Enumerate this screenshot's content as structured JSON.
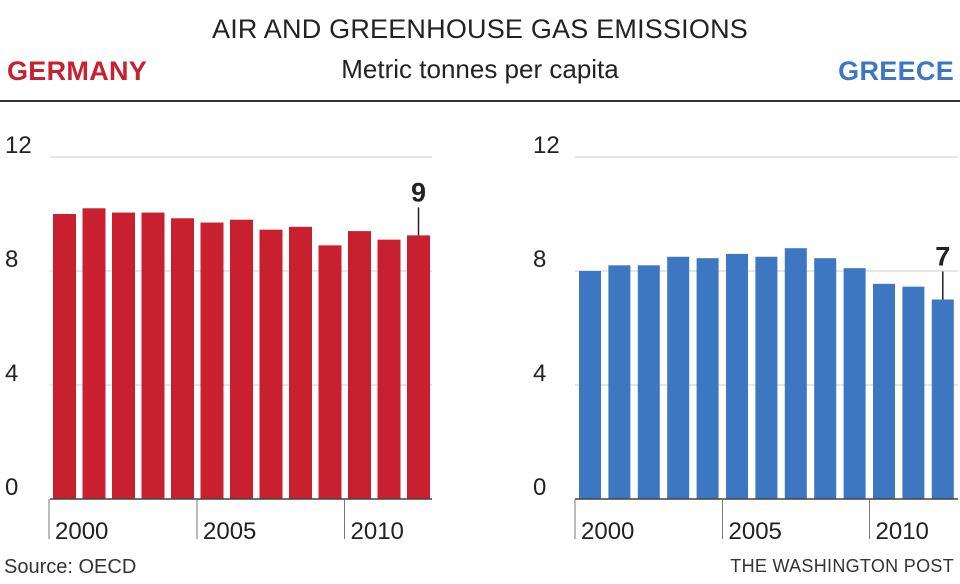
{
  "header": {
    "title": "AIR AND GREENHOUSE GAS EMISSIONS",
    "subtitle": "Metric tonnes per capita",
    "left_country": "GERMANY",
    "right_country": "GREECE"
  },
  "footer": {
    "source": "Source: OECD",
    "credit": "THE WASHINGTON POST"
  },
  "chart_data": [
    {
      "type": "bar",
      "country": "GERMANY",
      "color": "#c8202f",
      "x": [
        1999,
        2000,
        2001,
        2002,
        2003,
        2004,
        2005,
        2006,
        2007,
        2008,
        2009,
        2010,
        2011
      ],
      "values": [
        10.0,
        10.2,
        10.05,
        10.05,
        9.85,
        9.7,
        9.8,
        9.45,
        9.55,
        8.9,
        9.4,
        9.1,
        9.25
      ],
      "ylim": [
        0,
        12
      ],
      "yticks": [
        0,
        4,
        8,
        12
      ],
      "xticks": [
        "2000",
        "2005",
        "2010"
      ],
      "callout": "9"
    },
    {
      "type": "bar",
      "country": "GREECE",
      "color": "#3d77c2",
      "x": [
        1999,
        2000,
        2001,
        2002,
        2003,
        2004,
        2005,
        2006,
        2007,
        2008,
        2009,
        2010,
        2011
      ],
      "values": [
        8.0,
        8.2,
        8.2,
        8.5,
        8.45,
        8.6,
        8.5,
        8.8,
        8.45,
        8.1,
        7.55,
        7.45,
        7.0
      ],
      "ylim": [
        0,
        12
      ],
      "yticks": [
        0,
        4,
        8,
        12
      ],
      "xticks": [
        "2000",
        "2005",
        "2010"
      ],
      "callout": "7"
    }
  ]
}
